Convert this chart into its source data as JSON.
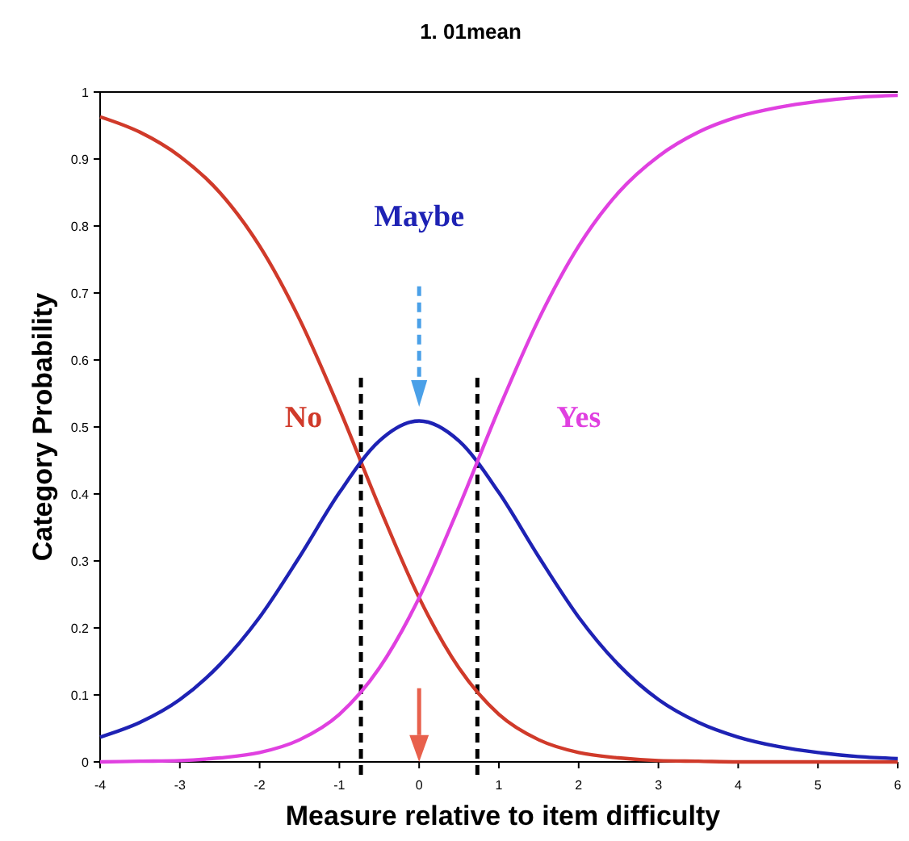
{
  "chart_data": {
    "type": "line",
    "title": "1. 01mean",
    "xlabel": "Measure relative to item difficulty",
    "ylabel": "Category Probability",
    "x": [
      -4,
      -3.5,
      -3,
      -2.5,
      -2,
      -1.5,
      -1,
      -0.5,
      0,
      0.5,
      1,
      1.5,
      2,
      2.5,
      3,
      3.5,
      4,
      4.5,
      5,
      5.5,
      6
    ],
    "series": [
      {
        "name": "No",
        "color": "#d03a2a",
        "values": [
          0.963,
          0.94,
          0.904,
          0.85,
          0.77,
          0.661,
          0.527,
          0.381,
          0.245,
          0.14,
          0.071,
          0.033,
          0.014,
          0.006,
          0.002,
          0.001,
          0,
          0,
          0,
          0,
          0
        ]
      },
      {
        "name": "Maybe",
        "color": "#1e22b4",
        "values": [
          0.037,
          0.059,
          0.093,
          0.145,
          0.216,
          0.306,
          0.402,
          0.479,
          0.509,
          0.479,
          0.402,
          0.306,
          0.216,
          0.145,
          0.093,
          0.059,
          0.037,
          0.023,
          0.014,
          0.008,
          0.005
        ]
      },
      {
        "name": "Yes",
        "color": "#e040e0",
        "values": [
          0,
          0.001,
          0.002,
          0.006,
          0.014,
          0.033,
          0.071,
          0.14,
          0.245,
          0.381,
          0.527,
          0.661,
          0.77,
          0.85,
          0.904,
          0.94,
          0.963,
          0.977,
          0.986,
          0.992,
          0.995
        ]
      }
    ],
    "xlim": [
      -4,
      6
    ],
    "ylim": [
      0,
      1
    ],
    "xticks": [
      -4,
      -3,
      -2,
      -1,
      0,
      1,
      2,
      3,
      4,
      5,
      6
    ],
    "yticks": [
      0,
      0.1,
      0.2,
      0.3,
      0.4,
      0.5,
      0.6,
      0.7,
      0.8,
      0.9,
      1
    ],
    "ref_lines": [
      {
        "axis": "x",
        "value": -0.73,
        "color": "#000000",
        "line_style": "dashed"
      },
      {
        "axis": "x",
        "value": 0.73,
        "color": "#000000",
        "line_style": "dashed"
      }
    ],
    "grid": false,
    "marker": "none",
    "line_style": "solid"
  }
}
